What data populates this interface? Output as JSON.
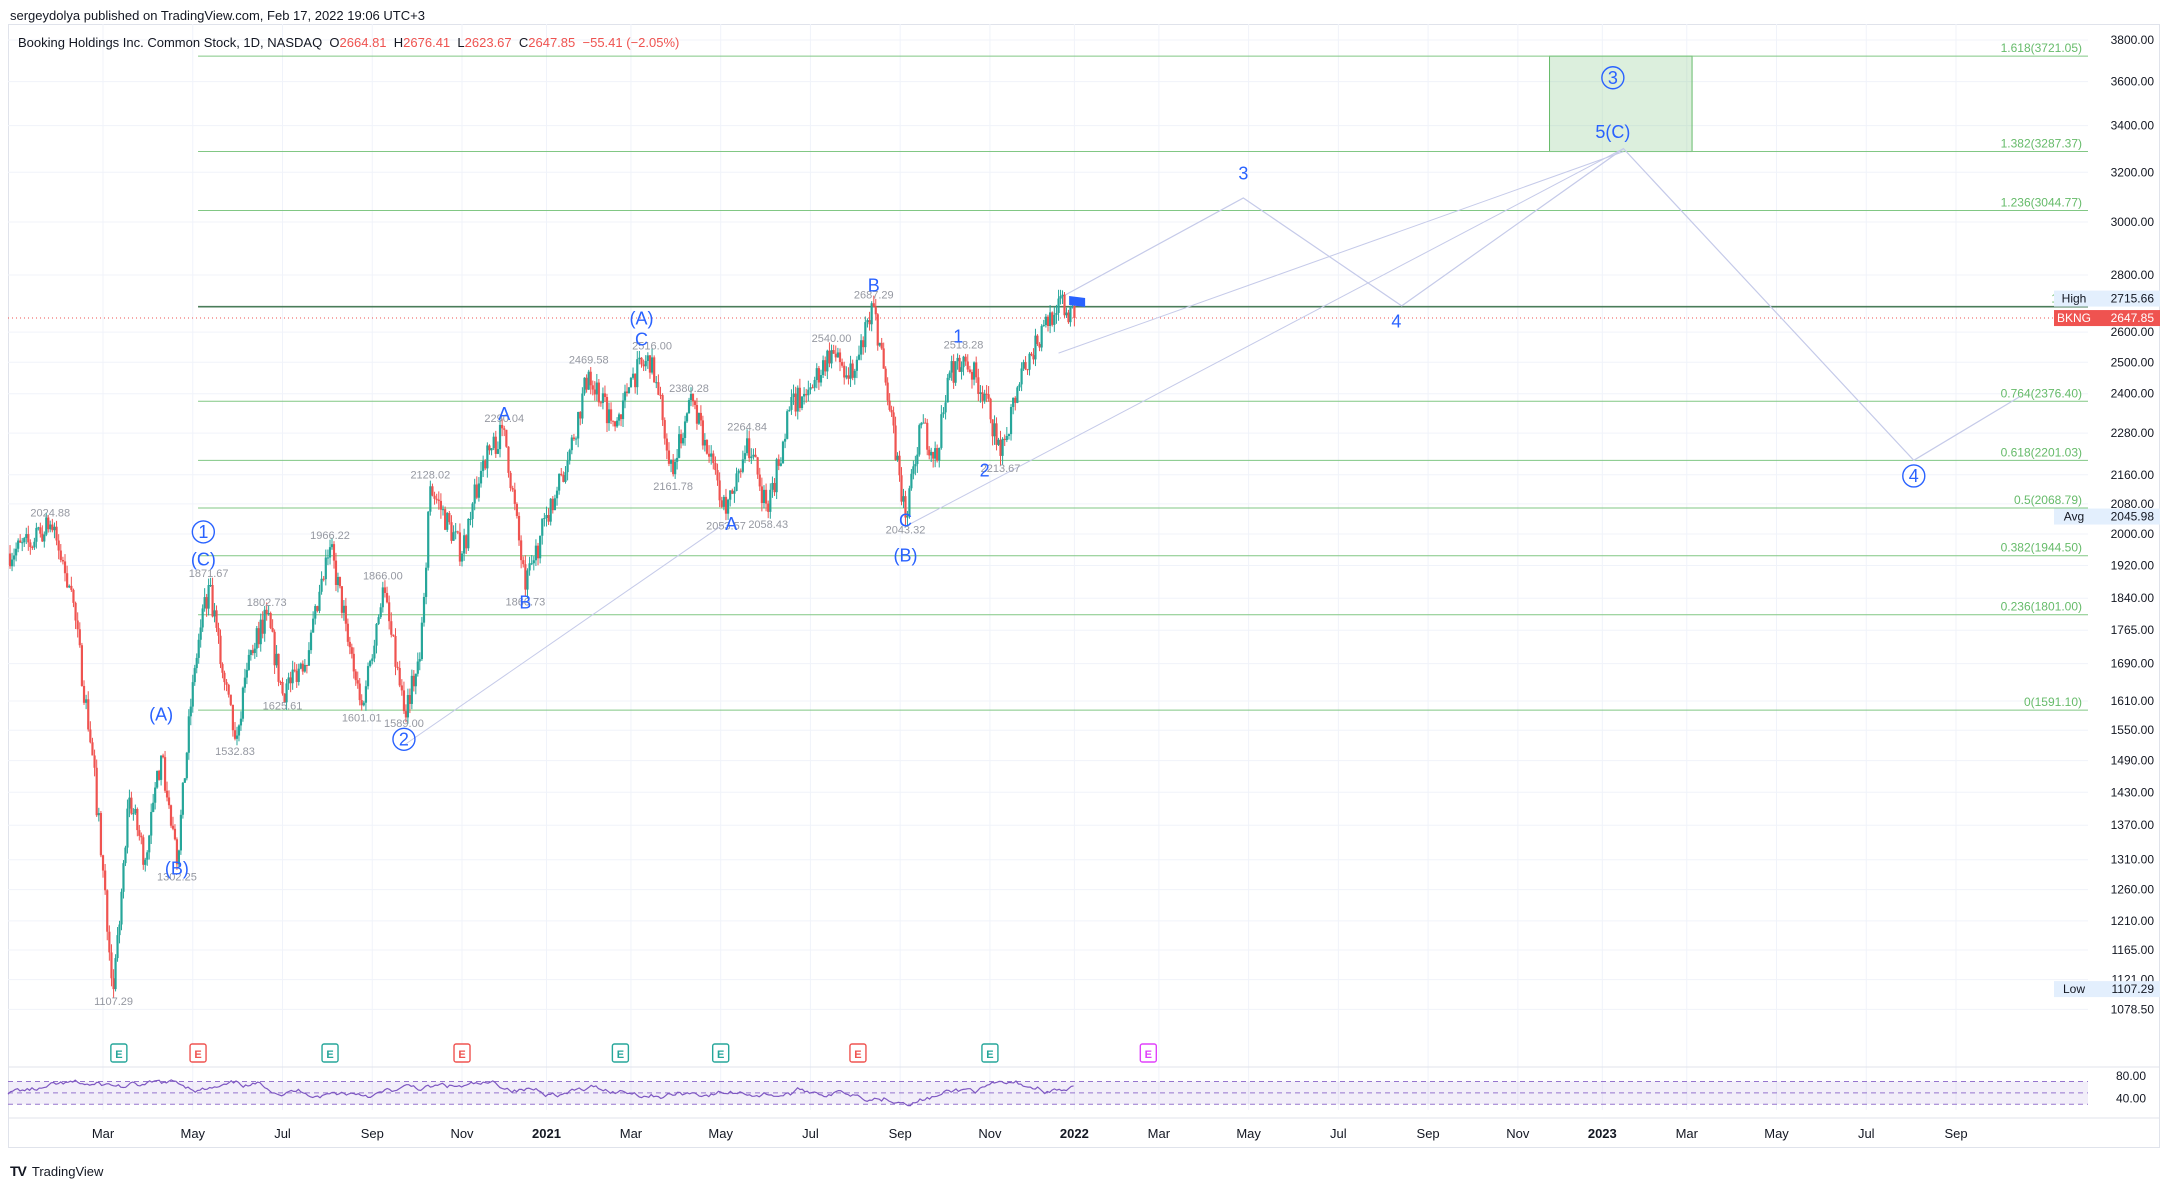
{
  "publisher": "sergeydolya published on TradingView.com, Feb 17, 2022 19:06 UTC+3",
  "footer": {
    "brand": "TradingView",
    "logo": "TV"
  },
  "legend": {
    "name": "Booking Holdings Inc. Common Stock, 1D, NASDAQ",
    "o_label": "O",
    "o": "2664.81",
    "h_label": "H",
    "h": "2676.41",
    "l_label": "L",
    "l": "2623.67",
    "c_label": "C",
    "c": "2647.85",
    "change": "−55.41 (−2.05%)"
  },
  "colors": {
    "up": "#26a69a",
    "down": "#ef5350",
    "wave": "#2962ff",
    "fib": "#81c784",
    "rsi": "#7e57c2",
    "ref_line": "#b2b5be"
  },
  "chart_data": {
    "type": "candlestick",
    "symbol": "BKNG",
    "ylim": [
      1050,
      3800
    ],
    "y_ticks": [
      "3800.00",
      "3600.00",
      "3400.00",
      "3200.00",
      "3000.00",
      "2800.00",
      "2600.00",
      "2500.00",
      "2400.00",
      "2280.00",
      "2160.00",
      "2080.00",
      "2000.00",
      "1920.00",
      "1840.00",
      "1765.00",
      "1690.00",
      "1610.00",
      "1550.00",
      "1490.00",
      "1430.00",
      "1370.00",
      "1310.00",
      "1260.00",
      "1210.00",
      "1165.00",
      "1121.00",
      "1078.50"
    ],
    "x_ticks": [
      {
        "label": "Mar",
        "t": 2020.16
      },
      {
        "label": "May",
        "t": 2020.33
      },
      {
        "label": "Jul",
        "t": 2020.5
      },
      {
        "label": "Sep",
        "t": 2020.67
      },
      {
        "label": "Nov",
        "t": 2020.84
      },
      {
        "label": "2021",
        "t": 2021.0
      },
      {
        "label": "Mar",
        "t": 2021.16
      },
      {
        "label": "May",
        "t": 2021.33
      },
      {
        "label": "Jul",
        "t": 2021.5
      },
      {
        "label": "Sep",
        "t": 2021.67
      },
      {
        "label": "Nov",
        "t": 2021.84
      },
      {
        "label": "2022",
        "t": 2022.0
      },
      {
        "label": "Mar",
        "t": 2022.16
      },
      {
        "label": "May",
        "t": 2022.33
      },
      {
        "label": "Jul",
        "t": 2022.5
      },
      {
        "label": "Sep",
        "t": 2022.67
      },
      {
        "label": "Nov",
        "t": 2022.84
      },
      {
        "label": "2023",
        "t": 2023.0
      },
      {
        "label": "Mar",
        "t": 2023.16
      },
      {
        "label": "May",
        "t": 2023.33
      },
      {
        "label": "Jul",
        "t": 2023.5
      },
      {
        "label": "Sep",
        "t": 2023.67
      }
    ],
    "price_path": [
      [
        2019.98,
        1950
      ],
      [
        2020.03,
        1980
      ],
      [
        2020.06,
        2024.88
      ],
      [
        2020.1,
        1860
      ],
      [
        2020.14,
        1500
      ],
      [
        2020.18,
        1107.29
      ],
      [
        2020.21,
        1420
      ],
      [
        2020.24,
        1310
      ],
      [
        2020.27,
        1500
      ],
      [
        2020.3,
        1302.25
      ],
      [
        2020.33,
        1650
      ],
      [
        2020.36,
        1871.67
      ],
      [
        2020.39,
        1650
      ],
      [
        2020.41,
        1532.83
      ],
      [
        2020.44,
        1720
      ],
      [
        2020.47,
        1802.73
      ],
      [
        2020.5,
        1625.61
      ],
      [
        2020.55,
        1720
      ],
      [
        2020.59,
        1966.22
      ],
      [
        2020.62,
        1780
      ],
      [
        2020.65,
        1601.01
      ],
      [
        2020.69,
        1866.0
      ],
      [
        2020.73,
        1589.0
      ],
      [
        2020.76,
        1700
      ],
      [
        2020.78,
        2128.02
      ],
      [
        2020.84,
        1950
      ],
      [
        2020.88,
        2200
      ],
      [
        2020.92,
        2290.04
      ],
      [
        2020.96,
        1860.73
      ],
      [
        2021.0,
        2050
      ],
      [
        2021.04,
        2200
      ],
      [
        2021.08,
        2469.58
      ],
      [
        2021.13,
        2300
      ],
      [
        2021.16,
        2450
      ],
      [
        2021.2,
        2516.0
      ],
      [
        2021.24,
        2161.78
      ],
      [
        2021.27,
        2380.28
      ],
      [
        2021.3,
        2260
      ],
      [
        2021.34,
        2053.57
      ],
      [
        2021.38,
        2264.84
      ],
      [
        2021.42,
        2058.43
      ],
      [
        2021.46,
        2350
      ],
      [
        2021.5,
        2420
      ],
      [
        2021.54,
        2540.0
      ],
      [
        2021.58,
        2450
      ],
      [
        2021.62,
        2687.29
      ],
      [
        2021.65,
        2350
      ],
      [
        2021.68,
        2043.32
      ],
      [
        2021.71,
        2310
      ],
      [
        2021.74,
        2200
      ],
      [
        2021.76,
        2450
      ],
      [
        2021.79,
        2518.28
      ],
      [
        2021.83,
        2400
      ],
      [
        2021.86,
        2213.67
      ],
      [
        2021.9,
        2480
      ],
      [
        2021.93,
        2560
      ],
      [
        2021.97,
        2715.66
      ],
      [
        2022.0,
        2647.85
      ]
    ],
    "fib_levels": [
      {
        "label": "1.618(3721.05)",
        "value": 3721.05
      },
      {
        "label": "1.382(3287.37)",
        "value": 3287.37
      },
      {
        "label": "1.236(3044.77)",
        "value": 3044.77
      },
      {
        "label": "1(268",
        "value": 2687.29
      },
      {
        "label": "0.764(2376.40)",
        "value": 2376.4
      },
      {
        "label": "0.618(2201.03)",
        "value": 2201.03
      },
      {
        "label": "0.5(2068.79)",
        "value": 2068.79
      },
      {
        "label": "0.382(1944.50)",
        "value": 1944.5
      },
      {
        "label": "0.236(1801.00)",
        "value": 1801.0
      },
      {
        "label": "0(1591.10)",
        "value": 1591.1
      }
    ],
    "price_labels": [
      {
        "text": "2024.88",
        "t": 2020.06,
        "v": 2024.88,
        "pos": "above"
      },
      {
        "text": "1107.29",
        "t": 2020.18,
        "v": 1107.29,
        "pos": "below"
      },
      {
        "text": "1302.25",
        "t": 2020.3,
        "v": 1302.25,
        "pos": "below"
      },
      {
        "text": "1871.67",
        "t": 2020.36,
        "v": 1871.67,
        "pos": "above"
      },
      {
        "text": "1532.83",
        "t": 2020.41,
        "v": 1532.83,
        "pos": "below"
      },
      {
        "text": "1802.73",
        "t": 2020.47,
        "v": 1802.73,
        "pos": "above"
      },
      {
        "text": "1625.61",
        "t": 2020.5,
        "v": 1625.61,
        "pos": "below"
      },
      {
        "text": "1966.22",
        "t": 2020.59,
        "v": 1966.22,
        "pos": "above"
      },
      {
        "text": "1601.01",
        "t": 2020.65,
        "v": 1601.01,
        "pos": "below"
      },
      {
        "text": "1866.00",
        "t": 2020.69,
        "v": 1866.0,
        "pos": "above"
      },
      {
        "text": "1589.00",
        "t": 2020.73,
        "v": 1589.0,
        "pos": "below"
      },
      {
        "text": "2128.02",
        "t": 2020.78,
        "v": 2128.02,
        "pos": "above"
      },
      {
        "text": "2290.04",
        "t": 2020.92,
        "v": 2290.04,
        "pos": "above"
      },
      {
        "text": "1860.73",
        "t": 2020.96,
        "v": 1860.73,
        "pos": "below"
      },
      {
        "text": "2469.58",
        "t": 2021.08,
        "v": 2469.58,
        "pos": "above"
      },
      {
        "text": "2516.00",
        "t": 2021.2,
        "v": 2516.0,
        "pos": "above"
      },
      {
        "text": "2161.78",
        "t": 2021.24,
        "v": 2161.78,
        "pos": "below"
      },
      {
        "text": "2380.28",
        "t": 2021.27,
        "v": 2380.28,
        "pos": "above"
      },
      {
        "text": "2053.57",
        "t": 2021.34,
        "v": 2053.57,
        "pos": "below"
      },
      {
        "text": "2264.84",
        "t": 2021.38,
        "v": 2264.84,
        "pos": "above"
      },
      {
        "text": "2058.43",
        "t": 2021.42,
        "v": 2058.43,
        "pos": "below"
      },
      {
        "text": "2540.00",
        "t": 2021.54,
        "v": 2540.0,
        "pos": "above"
      },
      {
        "text": "2687.29",
        "t": 2021.62,
        "v": 2687.29,
        "pos": "above"
      },
      {
        "text": "2043.32",
        "t": 2021.68,
        "v": 2043.32,
        "pos": "below"
      },
      {
        "text": "2518.28",
        "t": 2021.79,
        "v": 2518.28,
        "pos": "above"
      },
      {
        "text": "2213.67",
        "t": 2021.86,
        "v": 2213.67,
        "pos": "below"
      }
    ],
    "wave_labels": [
      {
        "text": "1",
        "t": 2020.35,
        "v": 1990,
        "circle": true
      },
      {
        "text": "(C)",
        "t": 2020.35,
        "v": 1920,
        "circle": false
      },
      {
        "text": "(A)",
        "t": 2020.27,
        "v": 1570,
        "circle": false
      },
      {
        "text": "(B)",
        "t": 2020.3,
        "v": 1285,
        "circle": false
      },
      {
        "text": "2",
        "t": 2020.73,
        "v": 1520,
        "circle": true
      },
      {
        "text": "A",
        "t": 2020.92,
        "v": 2320,
        "circle": false
      },
      {
        "text": "B",
        "t": 2020.96,
        "v": 1815,
        "circle": false
      },
      {
        "text": "(A)",
        "t": 2021.18,
        "v": 2625,
        "circle": false
      },
      {
        "text": "C",
        "t": 2021.18,
        "v": 2555,
        "circle": false
      },
      {
        "text": "A",
        "t": 2021.35,
        "v": 2010,
        "circle": false
      },
      {
        "text": "B",
        "t": 2021.62,
        "v": 2740,
        "circle": false
      },
      {
        "text": "C",
        "t": 2021.68,
        "v": 2020,
        "circle": false
      },
      {
        "text": "(B)",
        "t": 2021.68,
        "v": 1930,
        "circle": false
      },
      {
        "text": "1",
        "t": 2021.78,
        "v": 2565,
        "circle": false
      },
      {
        "text": "2",
        "t": 2021.83,
        "v": 2155,
        "circle": false
      },
      {
        "text": "3",
        "t": 2022.32,
        "v": 3170,
        "circle": false
      },
      {
        "text": "4",
        "t": 2022.61,
        "v": 2615,
        "circle": false
      },
      {
        "text": "3",
        "t": 2023.02,
        "v": 3590,
        "circle": true
      },
      {
        "text": "5(C)",
        "t": 2023.02,
        "v": 3345,
        "circle": false
      },
      {
        "text": "4",
        "t": 2023.59,
        "v": 2140,
        "circle": true
      }
    ],
    "projection": [
      [
        2021.97,
        2715.66
      ],
      [
        2022.32,
        3095
      ],
      [
        2022.62,
        2690
      ],
      [
        2023.04,
        3300
      ],
      [
        2023.59,
        2201
      ],
      [
        2023.79,
        2390
      ]
    ],
    "projection_guides": [
      [
        [
          2021.68,
          2020
        ],
        [
          2023.04,
          3300
        ]
      ],
      [
        [
          2021.97,
          2530
        ],
        [
          2023.04,
          3287
        ]
      ],
      [
        [
          2020.73,
          1520
        ],
        [
          2021.34,
          2030
        ]
      ]
    ],
    "target_box": {
      "t1": 2022.9,
      "t2": 2023.17,
      "v1": 3287.37,
      "v2": 3721.05
    },
    "current_price": {
      "label": "BKNG",
      "value": "2647.85",
      "v": 2647.85
    },
    "high": {
      "label": "High",
      "value": "2715.66",
      "v": 2715.66
    },
    "avg": {
      "label": "Avg",
      "value": "2045.98",
      "v": 2045.98
    },
    "low": {
      "label": "Low",
      "value": "1107.29",
      "v": 1107.29
    },
    "earnings": [
      {
        "t": 2020.19,
        "kind": "E",
        "beat": true
      },
      {
        "t": 2020.34,
        "kind": "E",
        "beat": false
      },
      {
        "t": 2020.59,
        "kind": "E",
        "beat": true
      },
      {
        "t": 2020.84,
        "kind": "E",
        "beat": false
      },
      {
        "t": 2021.14,
        "kind": "E",
        "beat": true
      },
      {
        "t": 2021.33,
        "kind": "E",
        "beat": true
      },
      {
        "t": 2021.59,
        "kind": "E",
        "beat": false
      },
      {
        "t": 2021.84,
        "kind": "E",
        "beat": true
      },
      {
        "t": 2022.14,
        "kind": "E",
        "beat": null
      }
    ],
    "rsi": {
      "ticks": [
        "80.00",
        "40.00"
      ],
      "upper": 70,
      "lower": 30,
      "ylim": [
        20,
        85
      ]
    }
  }
}
